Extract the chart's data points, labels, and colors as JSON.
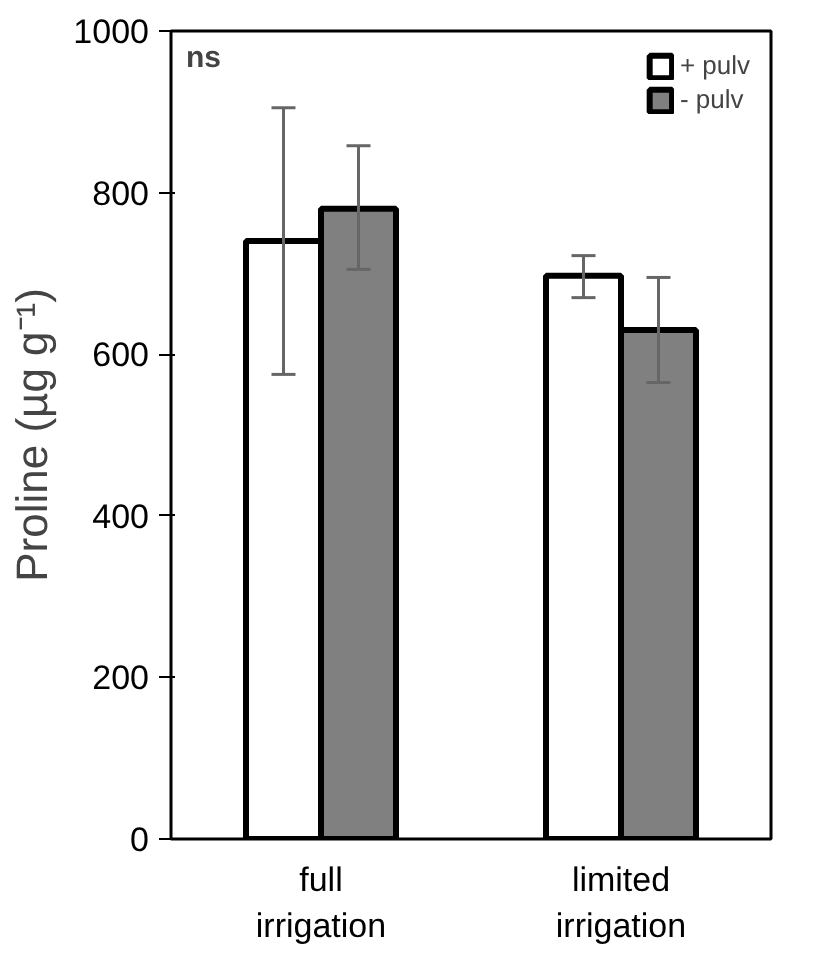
{
  "chart_data": {
    "type": "bar",
    "ylabel": "Proline (µg g⁻¹)",
    "categories": [
      "full\nirrigation",
      "limited\nirrigation"
    ],
    "series": [
      {
        "name": "+ pulv",
        "color": "#ffffff",
        "values": [
          740,
          697
        ],
        "errors": [
          [
            575,
            905
          ],
          [
            670,
            722
          ]
        ]
      },
      {
        "name": "- pulv",
        "color": "#808080",
        "values": [
          780,
          630
        ],
        "errors": [
          [
            705,
            858
          ],
          [
            565,
            695
          ]
        ]
      }
    ],
    "ylim": [
      0,
      1000
    ],
    "yticks": [
      0,
      200,
      400,
      600,
      800,
      1000
    ],
    "grid": false,
    "legend": "top right",
    "annotations": [
      "ns"
    ]
  }
}
